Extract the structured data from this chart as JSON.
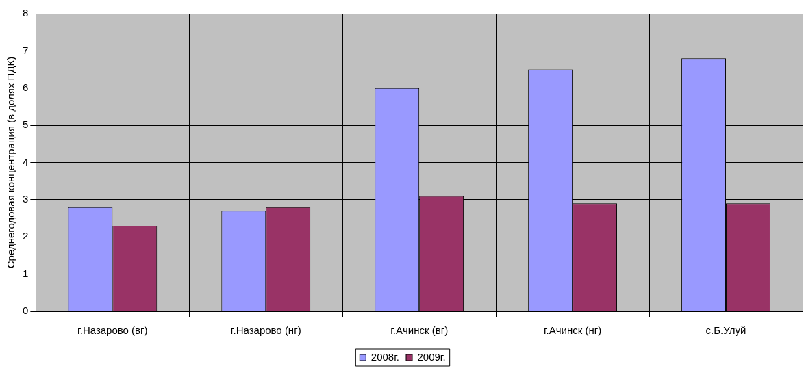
{
  "chart_data": {
    "type": "bar",
    "ylabel": "Среднегодовая концентрация (в долях ПДК)",
    "categories": [
      "г.Назарово (вг)",
      "г.Назарово (нг)",
      "г.Ачинск (вг)",
      "г.Ачинск (нг)",
      "с.Б.Улуй"
    ],
    "series": [
      {
        "name": "2008г.",
        "color": "#9999ff",
        "values": [
          2.8,
          2.7,
          6.0,
          6.5,
          6.8
        ]
      },
      {
        "name": "2009г.",
        "color": "#993366",
        "values": [
          2.3,
          2.8,
          3.1,
          2.9,
          2.9
        ]
      }
    ],
    "ylim": [
      0,
      8
    ],
    "yticks": [
      0,
      1,
      2,
      3,
      4,
      5,
      6,
      7,
      8
    ],
    "grid": true,
    "legend": "bottom"
  }
}
